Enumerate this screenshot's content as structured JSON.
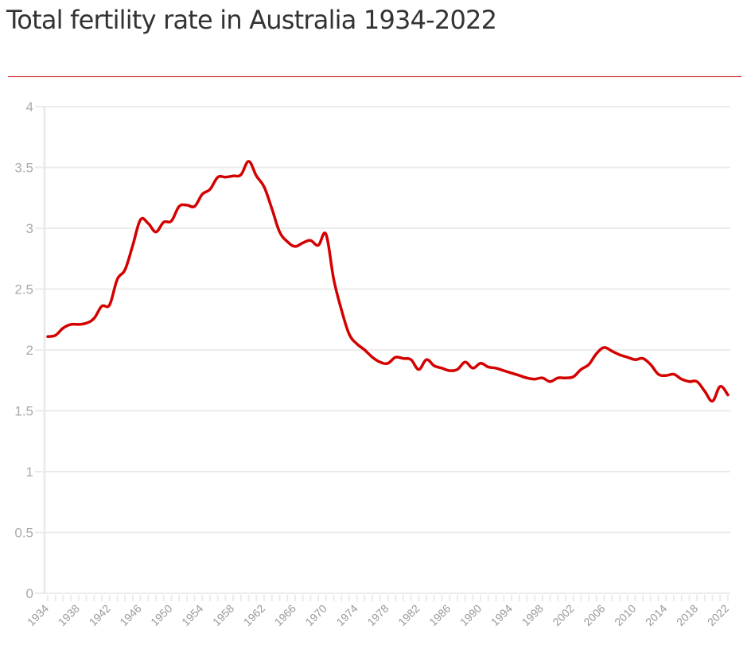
{
  "title": "Total fertility rate in Australia 1934-2022",
  "colors": {
    "line": "#d40000",
    "grid": "#ebebeb",
    "tick_text": "#aaaaaa",
    "rule": "#cc0000"
  },
  "chart_data": {
    "type": "line",
    "title": "Total fertility rate in Australia 1934-2022",
    "xlabel": "",
    "ylabel": "",
    "xlim": [
      1934,
      2022
    ],
    "ylim": [
      0,
      4
    ],
    "grid": true,
    "yticks": [
      "0",
      "0.5",
      "1",
      "1.5",
      "2",
      "2.5",
      "3",
      "3.5",
      "4"
    ],
    "ytick_values": [
      0,
      0.5,
      1,
      1.5,
      2,
      2.5,
      3,
      3.5,
      4
    ],
    "xticks": [
      "1934",
      "1938",
      "1942",
      "1946",
      "1950",
      "1954",
      "1958",
      "1962",
      "1966",
      "1970",
      "1974",
      "1978",
      "1982",
      "1986",
      "1990",
      "1994",
      "1998",
      "2002",
      "2006",
      "2010",
      "2014",
      "2018",
      "2022"
    ],
    "series": [
      {
        "name": "Total fertility rate",
        "x": [
          1934,
          1935,
          1936,
          1937,
          1938,
          1939,
          1940,
          1941,
          1942,
          1943,
          1944,
          1945,
          1946,
          1947,
          1948,
          1949,
          1950,
          1951,
          1952,
          1953,
          1954,
          1955,
          1956,
          1957,
          1958,
          1959,
          1960,
          1961,
          1962,
          1963,
          1964,
          1965,
          1966,
          1967,
          1968,
          1969,
          1970,
          1971,
          1972,
          1973,
          1974,
          1975,
          1976,
          1977,
          1978,
          1979,
          1980,
          1981,
          1982,
          1983,
          1984,
          1985,
          1986,
          1987,
          1988,
          1989,
          1990,
          1991,
          1992,
          1993,
          1994,
          1995,
          1996,
          1997,
          1998,
          1999,
          2000,
          2001,
          2002,
          2003,
          2004,
          2005,
          2006,
          2007,
          2008,
          2009,
          2010,
          2011,
          2012,
          2013,
          2014,
          2015,
          2016,
          2017,
          2018,
          2019,
          2020,
          2021,
          2022
        ],
        "values": [
          2.11,
          2.12,
          2.18,
          2.21,
          2.21,
          2.22,
          2.26,
          2.36,
          2.37,
          2.58,
          2.66,
          2.86,
          3.07,
          3.04,
          2.97,
          3.05,
          3.06,
          3.18,
          3.19,
          3.18,
          3.28,
          3.32,
          3.42,
          3.42,
          3.43,
          3.44,
          3.55,
          3.43,
          3.34,
          3.16,
          2.97,
          2.89,
          2.85,
          2.88,
          2.9,
          2.86,
          2.95,
          2.58,
          2.33,
          2.13,
          2.05,
          2.0,
          1.94,
          1.9,
          1.89,
          1.94,
          1.93,
          1.92,
          1.84,
          1.92,
          1.87,
          1.85,
          1.83,
          1.84,
          1.9,
          1.85,
          1.89,
          1.86,
          1.85,
          1.83,
          1.81,
          1.79,
          1.77,
          1.76,
          1.77,
          1.74,
          1.77,
          1.77,
          1.78,
          1.84,
          1.88,
          1.97,
          2.02,
          1.99,
          1.96,
          1.94,
          1.92,
          1.93,
          1.88,
          1.8,
          1.79,
          1.8,
          1.76,
          1.74,
          1.74,
          1.66,
          1.58,
          1.7,
          1.63
        ]
      }
    ]
  }
}
